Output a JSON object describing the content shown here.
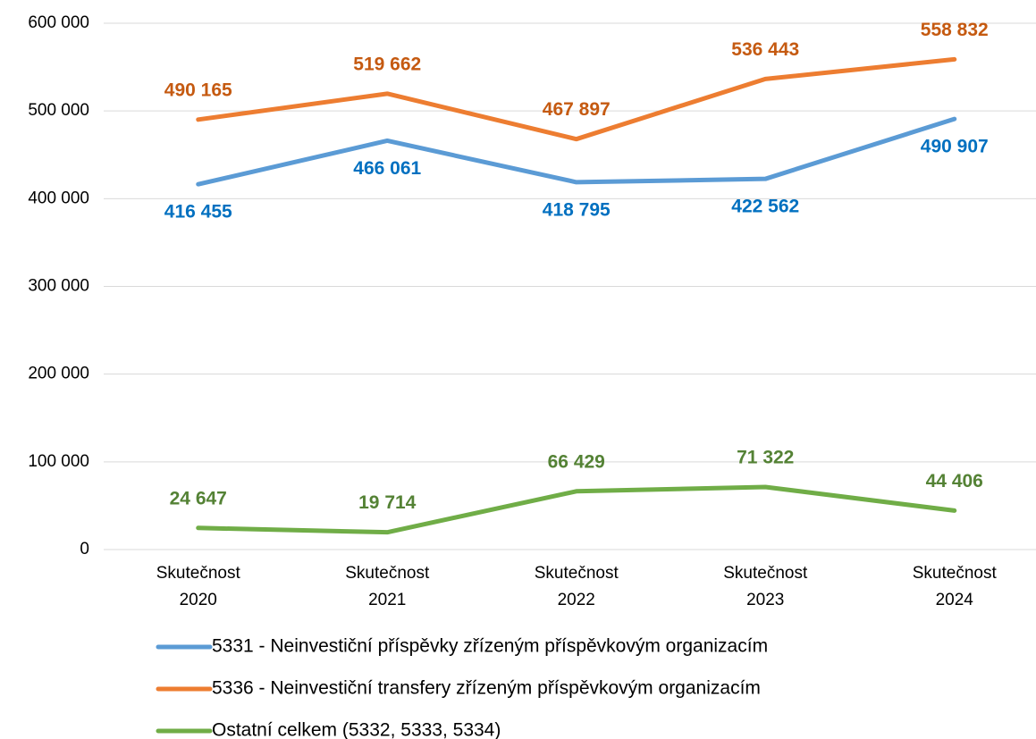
{
  "chart_data": {
    "type": "line",
    "categories": [
      "Skutečnost 2020",
      "Skutečnost 2021",
      "Skutečnost 2022",
      "Skutečnost 2023",
      "Skutečnost 2024"
    ],
    "series": [
      {
        "name": "5331 - Neinvestiční příspěvky zřízeným příspěvkovým organizacím",
        "color": "#5b9bd5",
        "label_color": "#0070c0",
        "label_position": "below",
        "values": [
          416455,
          466061,
          418795,
          422562,
          490907
        ],
        "value_labels": [
          "416 455",
          "466 061",
          "418 795",
          "422 562",
          "490 907"
        ]
      },
      {
        "name": "5336 - Neinvestiční transfery zřízeným příspěvkovým organizacím",
        "color": "#ed7d31",
        "label_color": "#c55a11",
        "label_position": "above",
        "values": [
          490165,
          519662,
          467897,
          536443,
          558832
        ],
        "value_labels": [
          "490 165",
          "519 662",
          "467 897",
          "536 443",
          "558 832"
        ]
      },
      {
        "name": "Ostatní celkem (5332, 5333, 5334)",
        "color": "#70ad47",
        "label_color": "#548235",
        "label_position": "above",
        "values": [
          24647,
          19714,
          66429,
          71322,
          44406
        ],
        "value_labels": [
          "24 647",
          "19 714",
          "66 429",
          "71 322",
          "44 406"
        ]
      }
    ],
    "ylim": [
      0,
      600000
    ],
    "yticks": [
      0,
      {
        "value": 100000,
        "label": "100 000"
      },
      {
        "value": 200000,
        "label": "200 000"
      },
      {
        "value": 300000,
        "label": "300 000"
      },
      {
        "value": 400000,
        "label": "400 000"
      },
      {
        "value": 500000,
        "label": "500 000"
      },
      {
        "value": 600000,
        "label": "600 000"
      }
    ],
    "grid": true,
    "legend": "bottom"
  }
}
